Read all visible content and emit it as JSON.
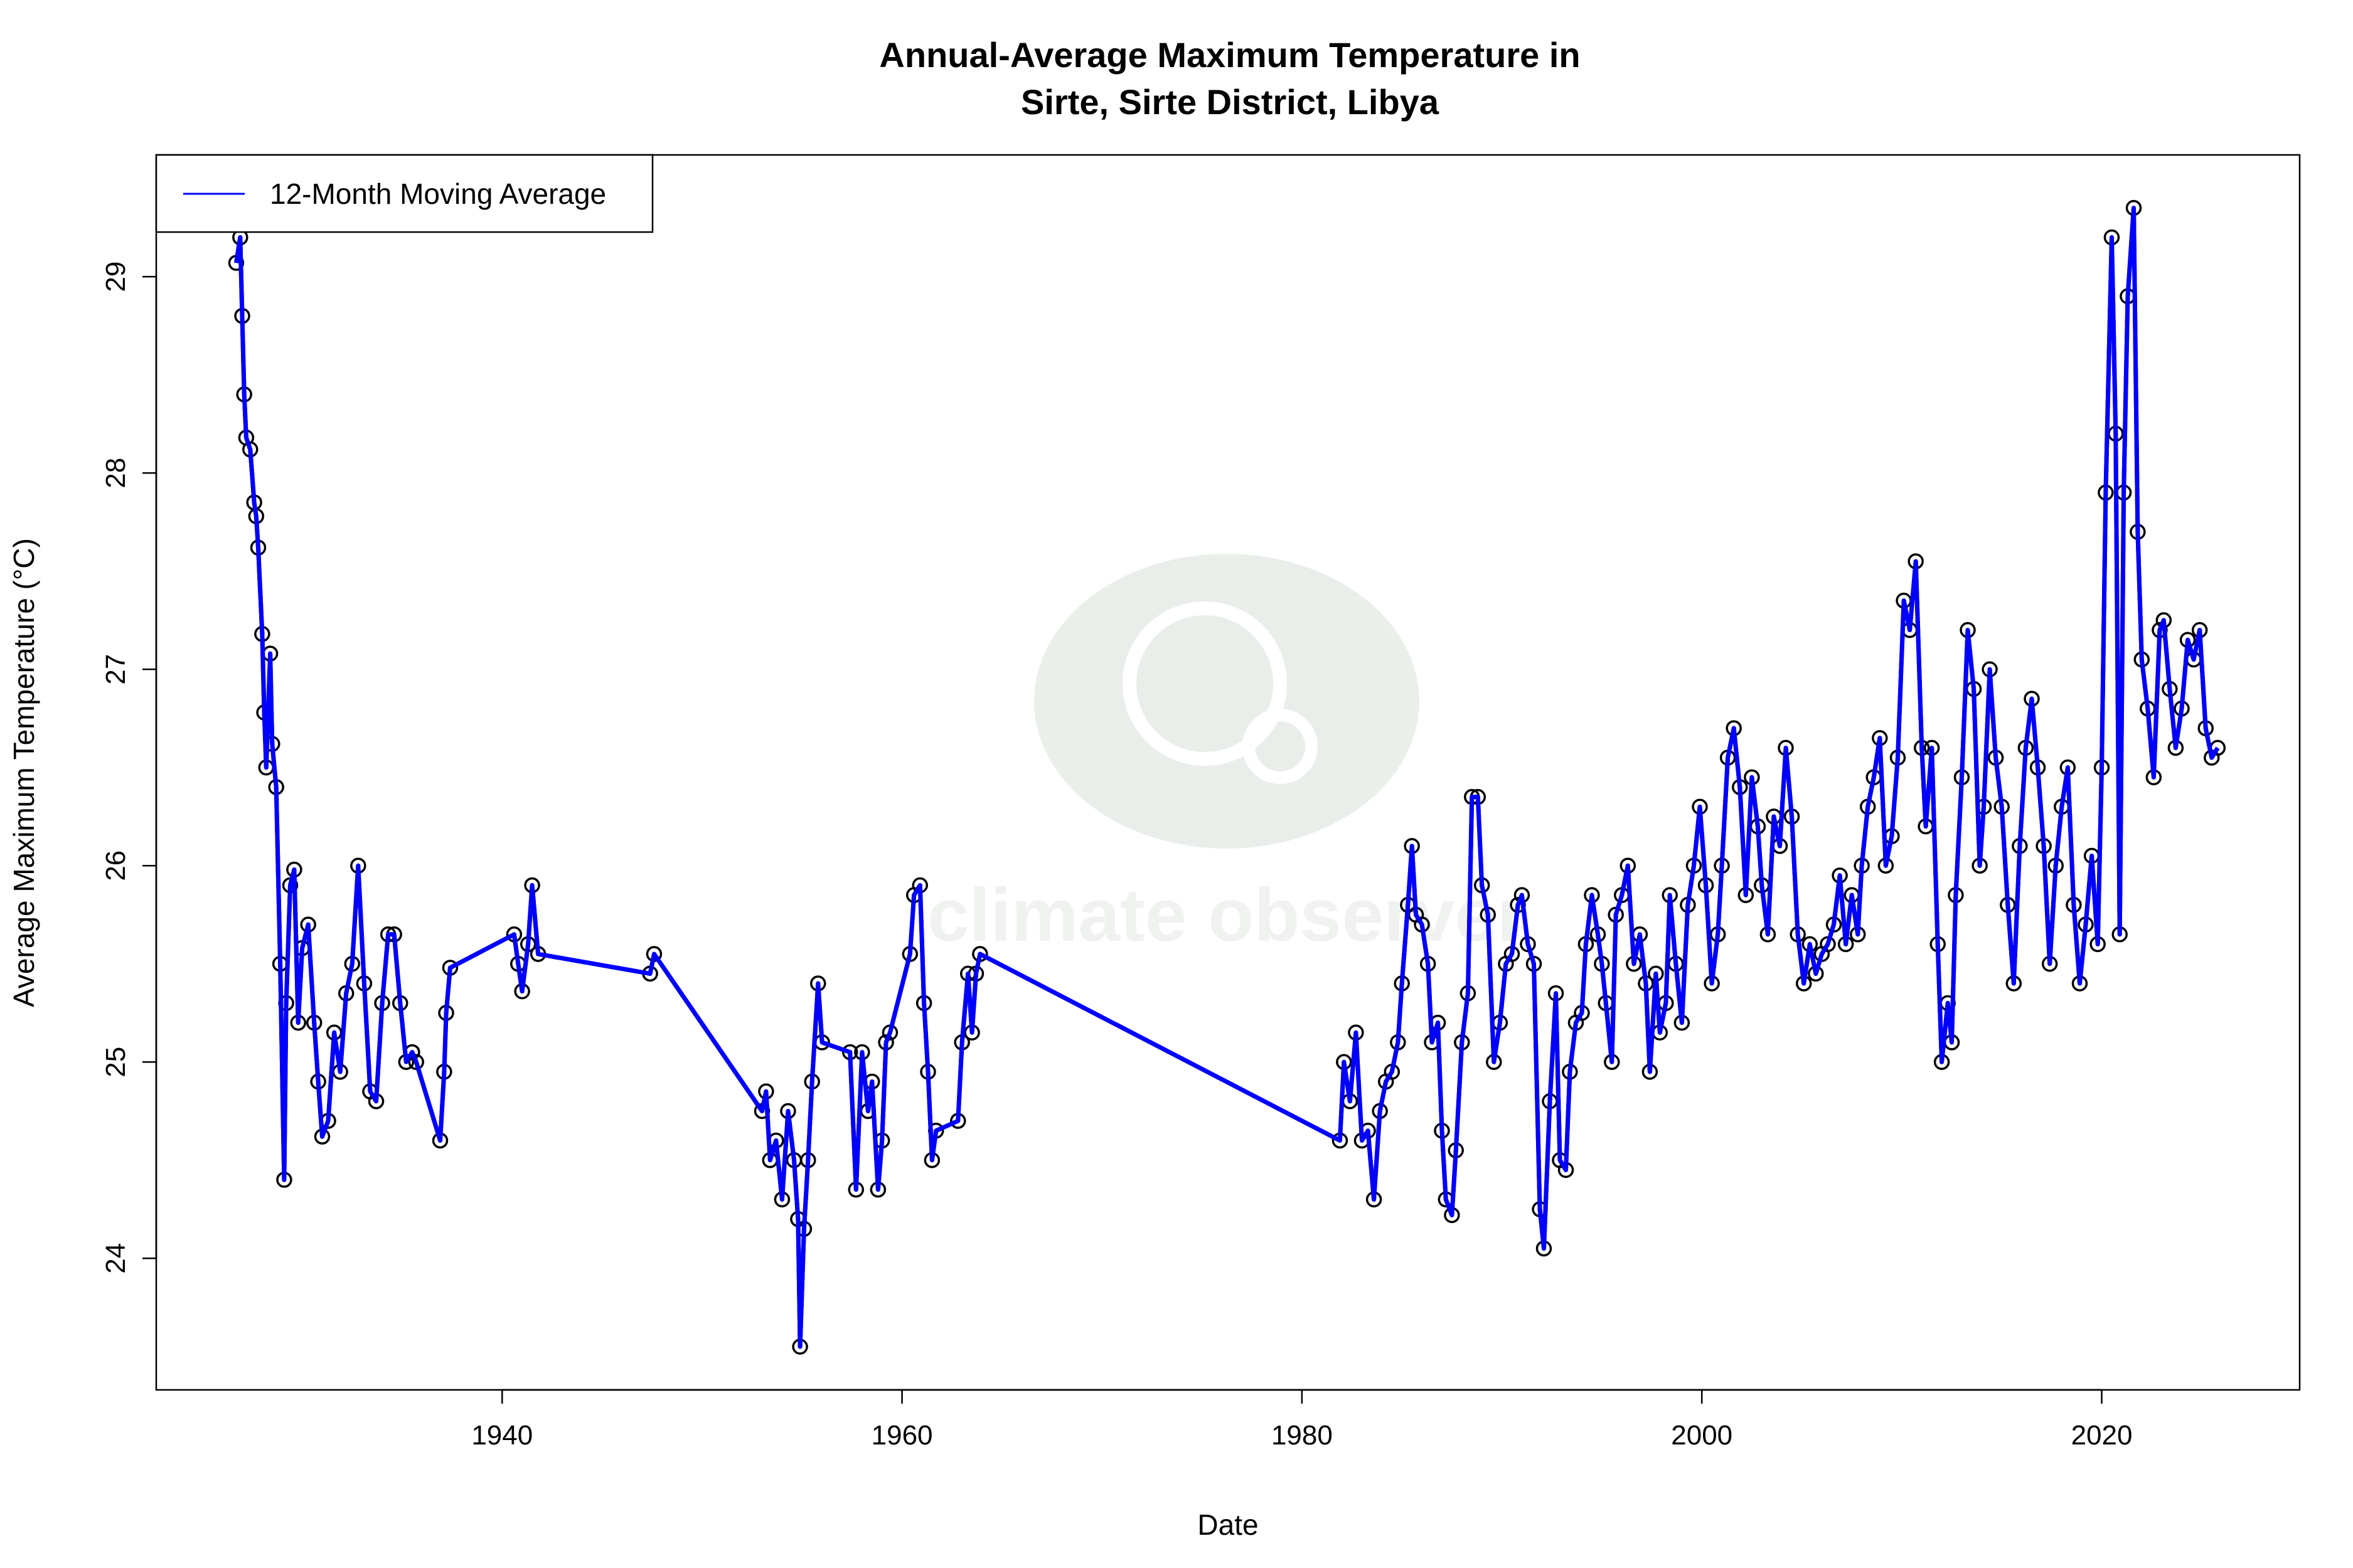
{
  "chart_data": {
    "type": "line",
    "title": "Annual-Average Maximum Temperature in\nSirte, Sirte District, Libya",
    "title_lines": [
      "Annual-Average Maximum Temperature in",
      "Sirte, Sirte District, Libya"
    ],
    "xlabel": "Date",
    "ylabel": "Average Maximum Temperature (°C)",
    "xlim": [
      1922.7,
      2029.9
    ],
    "ylim": [
      23.33,
      29.62
    ],
    "x_ticks": [
      1940,
      1960,
      1980,
      2000,
      2020
    ],
    "y_ticks": [
      24,
      25,
      26,
      27,
      28,
      29
    ],
    "grid": false,
    "legend": {
      "position": "top-left",
      "entries": [
        "12-Month Moving Average"
      ]
    },
    "watermark": "climate observer · www.climate-observer.org",
    "colors": {
      "line": "#0000ff",
      "points": "#000000",
      "watermark": "#e8ede8"
    },
    "series": [
      {
        "name": "12-Month Moving Average",
        "x": [
          1926.7,
          1926.9,
          1927.0,
          1927.1,
          1927.2,
          1927.4,
          1927.6,
          1927.7,
          1927.8,
          1928.0,
          1928.1,
          1928.2,
          1928.4,
          1928.5,
          1928.7,
          1928.9,
          1929.1,
          1929.2,
          1929.4,
          1929.6,
          1929.8,
          1930.0,
          1930.3,
          1930.6,
          1930.8,
          1931.0,
          1931.3,
          1931.6,
          1931.9,
          1932.2,
          1932.5,
          1932.8,
          1933.1,
          1933.4,
          1933.7,
          1934.0,
          1934.3,
          1934.6,
          1934.9,
          1935.2,
          1935.5,
          1935.7,
          1936.9,
          1937.1,
          1937.2,
          1937.4,
          1940.6,
          1940.8,
          1941.0,
          1941.3,
          1941.5,
          1941.8,
          1947.4,
          1947.6,
          1953.0,
          1953.2,
          1953.4,
          1953.7,
          1954.0,
          1954.3,
          1954.6,
          1954.8,
          1954.9,
          1955.1,
          1955.3,
          1955.5,
          1955.8,
          1956.0,
          1957.4,
          1957.7,
          1958.0,
          1958.3,
          1958.5,
          1958.8,
          1959.0,
          1959.2,
          1959.4,
          1960.4,
          1960.6,
          1960.9,
          1961.1,
          1961.3,
          1961.5,
          1961.7,
          1962.8,
          1963.0,
          1963.3,
          1963.5,
          1963.7,
          1963.9,
          1981.9,
          1982.1,
          1982.4,
          1982.7,
          1983.0,
          1983.3,
          1983.6,
          1983.9,
          1984.2,
          1984.5,
          1984.8,
          1985.0,
          1985.3,
          1985.5,
          1985.7,
          1986.0,
          1986.3,
          1986.5,
          1986.8,
          1987.0,
          1987.2,
          1987.5,
          1987.7,
          1988.0,
          1988.3,
          1988.5,
          1988.8,
          1989.0,
          1989.3,
          1989.6,
          1989.9,
          1990.2,
          1990.5,
          1990.8,
          1991.0,
          1991.3,
          1991.6,
          1991.9,
          1992.1,
          1992.4,
          1992.7,
          1992.9,
          1993.2,
          1993.4,
          1993.7,
          1994.0,
          1994.2,
          1994.5,
          1994.8,
          1995.0,
          1995.2,
          1995.5,
          1995.7,
          1996.0,
          1996.3,
          1996.6,
          1996.9,
          1997.2,
          1997.4,
          1997.7,
          1997.9,
          1998.2,
          1998.4,
          1998.7,
          1999.0,
          1999.3,
          1999.6,
          1999.9,
          2000.2,
          2000.5,
          2000.8,
          2001.0,
          2001.3,
          2001.6,
          2001.9,
          2002.2,
          2002.5,
          2002.8,
          2003.0,
          2003.3,
          2003.6,
          2003.9,
          2004.2,
          2004.5,
          2004.8,
          2005.1,
          2005.4,
          2005.7,
          2006.0,
          2006.3,
          2006.6,
          2006.9,
          2007.2,
          2007.5,
          2007.8,
          2008.0,
          2008.3,
          2008.6,
          2008.9,
          2009.2,
          2009.5,
          2009.8,
          2010.1,
          2010.4,
          2010.7,
          2011.0,
          2011.2,
          2011.5,
          2011.8,
          2012.0,
          2012.3,
          2012.5,
          2012.7,
          2013.0,
          2013.3,
          2013.6,
          2013.9,
          2014.1,
          2014.4,
          2014.7,
          2015.0,
          2015.3,
          2015.6,
          2015.9,
          2016.2,
          2016.5,
          2016.8,
          2017.1,
          2017.4,
          2017.7,
          2018.0,
          2018.3,
          2018.6,
          2018.9,
          2019.2,
          2019.5,
          2019.8,
          2020.0,
          2020.2,
          2020.5,
          2020.7,
          2020.9,
          2021.1,
          2021.3,
          2021.6,
          2021.8,
          2022.0,
          2022.3,
          2022.6,
          2022.9,
          2023.1,
          2023.4,
          2023.7,
          2024.0,
          2024.3,
          2024.6,
          2024.9,
          2025.2,
          2025.5,
          2025.8
        ],
        "y": [
          29.07,
          29.2,
          28.8,
          28.4,
          28.18,
          28.12,
          27.85,
          27.78,
          27.62,
          27.18,
          26.78,
          26.5,
          27.08,
          26.62,
          26.4,
          25.5,
          24.4,
          25.3,
          25.9,
          25.98,
          25.2,
          25.58,
          25.7,
          25.2,
          24.9,
          24.62,
          24.7,
          25.15,
          24.95,
          25.35,
          25.5,
          26.0,
          25.4,
          24.85,
          24.8,
          25.3,
          25.65,
          25.65,
          25.3,
          25.0,
          25.05,
          25.0,
          24.6,
          24.95,
          25.25,
          25.48,
          25.65,
          25.5,
          25.36,
          25.6,
          25.9,
          25.55,
          25.45,
          25.55,
          24.75,
          24.85,
          24.5,
          24.6,
          24.3,
          24.75,
          24.5,
          24.2,
          23.55,
          24.15,
          24.5,
          24.9,
          25.4,
          25.1,
          25.05,
          24.35,
          25.05,
          24.75,
          24.9,
          24.35,
          24.6,
          25.1,
          25.15,
          25.55,
          25.85,
          25.9,
          25.3,
          24.95,
          24.5,
          24.65,
          24.7,
          25.1,
          25.45,
          25.15,
          25.45,
          25.55,
          24.6,
          25.0,
          24.8,
          25.15,
          24.6,
          24.65,
          24.3,
          24.75,
          24.9,
          24.95,
          25.1,
          25.4,
          25.8,
          26.1,
          25.75,
          25.7,
          25.5,
          25.1,
          25.2,
          24.65,
          24.3,
          24.22,
          24.55,
          25.1,
          25.35,
          26.35,
          26.35,
          25.9,
          25.75,
          25.0,
          25.2,
          25.5,
          25.55,
          25.8,
          25.85,
          25.6,
          25.5,
          24.25,
          24.05,
          24.8,
          25.35,
          24.5,
          24.45,
          24.95,
          25.2,
          25.25,
          25.6,
          25.85,
          25.65,
          25.5,
          25.3,
          25.0,
          25.75,
          25.85,
          26.0,
          25.5,
          25.65,
          25.4,
          24.95,
          25.45,
          25.15,
          25.3,
          25.85,
          25.5,
          25.2,
          25.8,
          26.0,
          26.3,
          25.9,
          25.4,
          25.65,
          26.0,
          26.55,
          26.7,
          26.4,
          25.85,
          26.45,
          26.2,
          25.9,
          25.65,
          26.25,
          26.1,
          26.6,
          26.25,
          25.65,
          25.4,
          25.6,
          25.45,
          25.55,
          25.6,
          25.7,
          25.95,
          25.6,
          25.85,
          25.65,
          26.0,
          26.3,
          26.45,
          26.65,
          26.0,
          26.15,
          26.55,
          27.35,
          27.2,
          27.55,
          26.6,
          26.2,
          26.6,
          25.6,
          25.0,
          25.3,
          25.1,
          25.85,
          26.45,
          27.2,
          26.9,
          26.0,
          26.3,
          27.0,
          26.55,
          26.3,
          25.8,
          25.4,
          26.1,
          26.6,
          26.85,
          26.5,
          26.1,
          25.5,
          26.0,
          26.3,
          26.5,
          25.8,
          25.4,
          25.7,
          26.05,
          25.6,
          26.5,
          27.9,
          29.2,
          28.2,
          25.65,
          27.9,
          28.9,
          29.35,
          27.7,
          27.05,
          26.8,
          26.45,
          27.2,
          27.25,
          26.9,
          26.6,
          26.8,
          27.15,
          27.05,
          27.2,
          26.7,
          26.55,
          26.6
        ]
      }
    ]
  }
}
